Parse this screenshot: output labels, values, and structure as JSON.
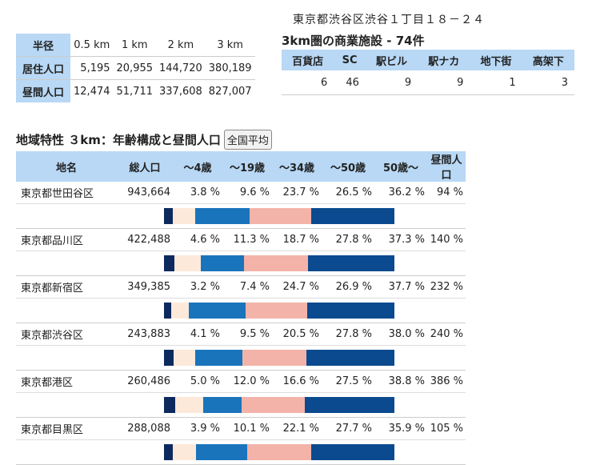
{
  "address": "東京都渋谷区渋谷１丁目１８－２４",
  "radius_table": {
    "header_label": "半径",
    "columns": [
      "0.5 km",
      "1 km",
      "2 km",
      "3 km"
    ],
    "rows": [
      {
        "label": "居住人口",
        "values": [
          "5,195",
          "20,955",
          "144,720",
          "380,189"
        ]
      },
      {
        "label": "昼間人口",
        "values": [
          "12,474",
          "51,711",
          "337,608",
          "827,007"
        ]
      }
    ]
  },
  "facilities": {
    "title": "3km圏の商業施設 - 74件",
    "columns": [
      "百貨店",
      "SC",
      "駅ビル",
      "駅ナカ",
      "地下街",
      "高架下"
    ],
    "values": [
      "6",
      "46",
      "9",
      "9",
      "1",
      "3"
    ]
  },
  "region": {
    "title": "地域特性 ３km：年齢構成と昼間人口",
    "national_button": "全国平均",
    "columns": [
      "地名",
      "総人口",
      "～4歳",
      "～19歳",
      "～34歳",
      "～50歳",
      "50歳～",
      "昼間人口"
    ],
    "bar_colors": [
      "#0d2a5e",
      "#fde9da",
      "#1a74bc",
      "#f4b3a8",
      "#0b4a8f"
    ],
    "rows": [
      {
        "name": "東京都世田谷区",
        "total": "943,664",
        "a4": "3.8 %",
        "a19": "9.6 %",
        "a34": "23.7 %",
        "a50": "26.5 %",
        "a50p": "36.2 %",
        "day": "94 %",
        "shares": [
          3.8,
          9.6,
          23.7,
          26.5,
          36.2
        ]
      },
      {
        "name": "東京都品川区",
        "total": "422,488",
        "a4": "4.6 %",
        "a19": "11.3 %",
        "a34": "18.7 %",
        "a50": "27.8 %",
        "a50p": "37.3 %",
        "day": "140 %",
        "shares": [
          4.6,
          11.3,
          18.7,
          27.8,
          37.3
        ]
      },
      {
        "name": "東京都新宿区",
        "total": "349,385",
        "a4": "3.2 %",
        "a19": "7.4 %",
        "a34": "24.7 %",
        "a50": "26.9 %",
        "a50p": "37.7 %",
        "day": "232 %",
        "shares": [
          3.2,
          7.4,
          24.7,
          26.9,
          37.7
        ]
      },
      {
        "name": "東京都渋谷区",
        "total": "243,883",
        "a4": "4.1 %",
        "a19": "9.5 %",
        "a34": "20.5 %",
        "a50": "27.8 %",
        "a50p": "38.0 %",
        "day": "240 %",
        "shares": [
          4.1,
          9.5,
          20.5,
          27.8,
          38.0
        ]
      },
      {
        "name": "東京都港区",
        "total": "260,486",
        "a4": "5.0 %",
        "a19": "12.0 %",
        "a34": "16.6 %",
        "a50": "27.5 %",
        "a50p": "38.8 %",
        "day": "386 %",
        "shares": [
          5.0,
          12.0,
          16.6,
          27.5,
          38.8
        ]
      },
      {
        "name": "東京都目黒区",
        "total": "288,088",
        "a4": "3.9 %",
        "a19": "10.1 %",
        "a34": "22.1 %",
        "a50": "27.7 %",
        "a50p": "35.9 %",
        "day": "105 %",
        "shares": [
          3.9,
          10.1,
          22.1,
          27.7,
          35.9
        ]
      }
    ]
  }
}
